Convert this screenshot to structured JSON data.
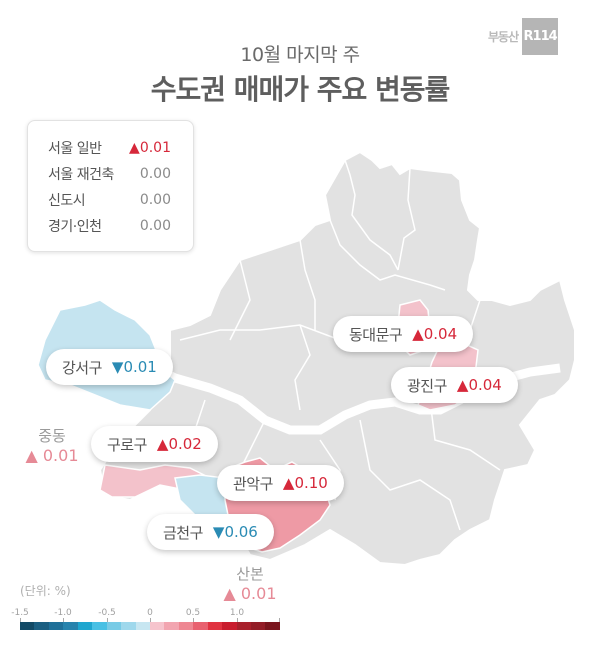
{
  "header": {
    "subtitle": "10월 마지막 주",
    "title": "수도권 매매가 주요 변동률",
    "logo_text": "부동산",
    "logo_box": "R114"
  },
  "summary": [
    {
      "name": "서울 일반",
      "value": "▲0.01",
      "direction": "up"
    },
    {
      "name": "서울 재건축",
      "value": "0.00",
      "direction": "flat"
    },
    {
      "name": "신도시",
      "value": "0.00",
      "direction": "flat"
    },
    {
      "name": "경기·인천",
      "value": "0.00",
      "direction": "flat"
    }
  ],
  "callouts": {
    "dongdaemun": {
      "name": "동대문구",
      "value": "▲0.04"
    },
    "gangseo": {
      "name": "강서구",
      "value": "▼0.01"
    },
    "gwangjin": {
      "name": "광진구",
      "value": "▲0.04"
    },
    "guro": {
      "name": "구로구",
      "value": "▲0.02"
    },
    "gwanak": {
      "name": "관악구",
      "value": "▲0.10"
    },
    "geumcheon": {
      "name": "금천구",
      "value": "▼0.06"
    }
  },
  "side_labels": {
    "jungdong": {
      "name": "중동",
      "value": "▲ 0.01"
    },
    "sanbon": {
      "name": "산본",
      "value": "▲ 0.01"
    }
  },
  "legend": {
    "unit": "(단위:  %)",
    "ticks": [
      "-1.5",
      "-1.0",
      "-0.5",
      "0",
      "0.5",
      "1.0"
    ],
    "colors": [
      "#124a66",
      "#1b5f82",
      "#1f7099",
      "#2783ad",
      "#1fa6cf",
      "#49c0e4",
      "#78cbe6",
      "#9fd8ec",
      "#c7e6f1",
      "#f6c4cd",
      "#f2a5b0",
      "#ee8792",
      "#e8616f",
      "#e03341",
      "#c91d2e",
      "#a8202b",
      "#931d27",
      "#7a151d"
    ],
    "region_colors": {
      "neutral": "#e2e2e2",
      "down_light": "#c5e4f0",
      "up_light": "#f3c2cb",
      "up_mid": "#ee9aa5"
    }
  },
  "chart_data": {
    "type": "choropleth_map",
    "title": "수도권 매매가 주요 변동률",
    "subtitle": "10월 마지막 주",
    "unit": "%",
    "summary": [
      {
        "region": "서울 일반",
        "change": 0.01
      },
      {
        "region": "서울 재건축",
        "change": 0.0
      },
      {
        "region": "신도시",
        "change": 0.0
      },
      {
        "region": "경기·인천",
        "change": 0.0
      }
    ],
    "districts": [
      {
        "name": "동대문구",
        "change": 0.04
      },
      {
        "name": "강서구",
        "change": -0.01
      },
      {
        "name": "광진구",
        "change": 0.04
      },
      {
        "name": "구로구",
        "change": 0.02
      },
      {
        "name": "관악구",
        "change": 0.1
      },
      {
        "name": "금천구",
        "change": -0.06
      },
      {
        "name": "중동",
        "change": 0.01
      },
      {
        "name": "산본",
        "change": 0.01
      }
    ],
    "color_scale": {
      "min": -1.5,
      "max": 1.5,
      "ticks": [
        -1.5,
        -1.0,
        -0.5,
        0,
        0.5,
        1.0
      ],
      "segments": 18
    }
  }
}
